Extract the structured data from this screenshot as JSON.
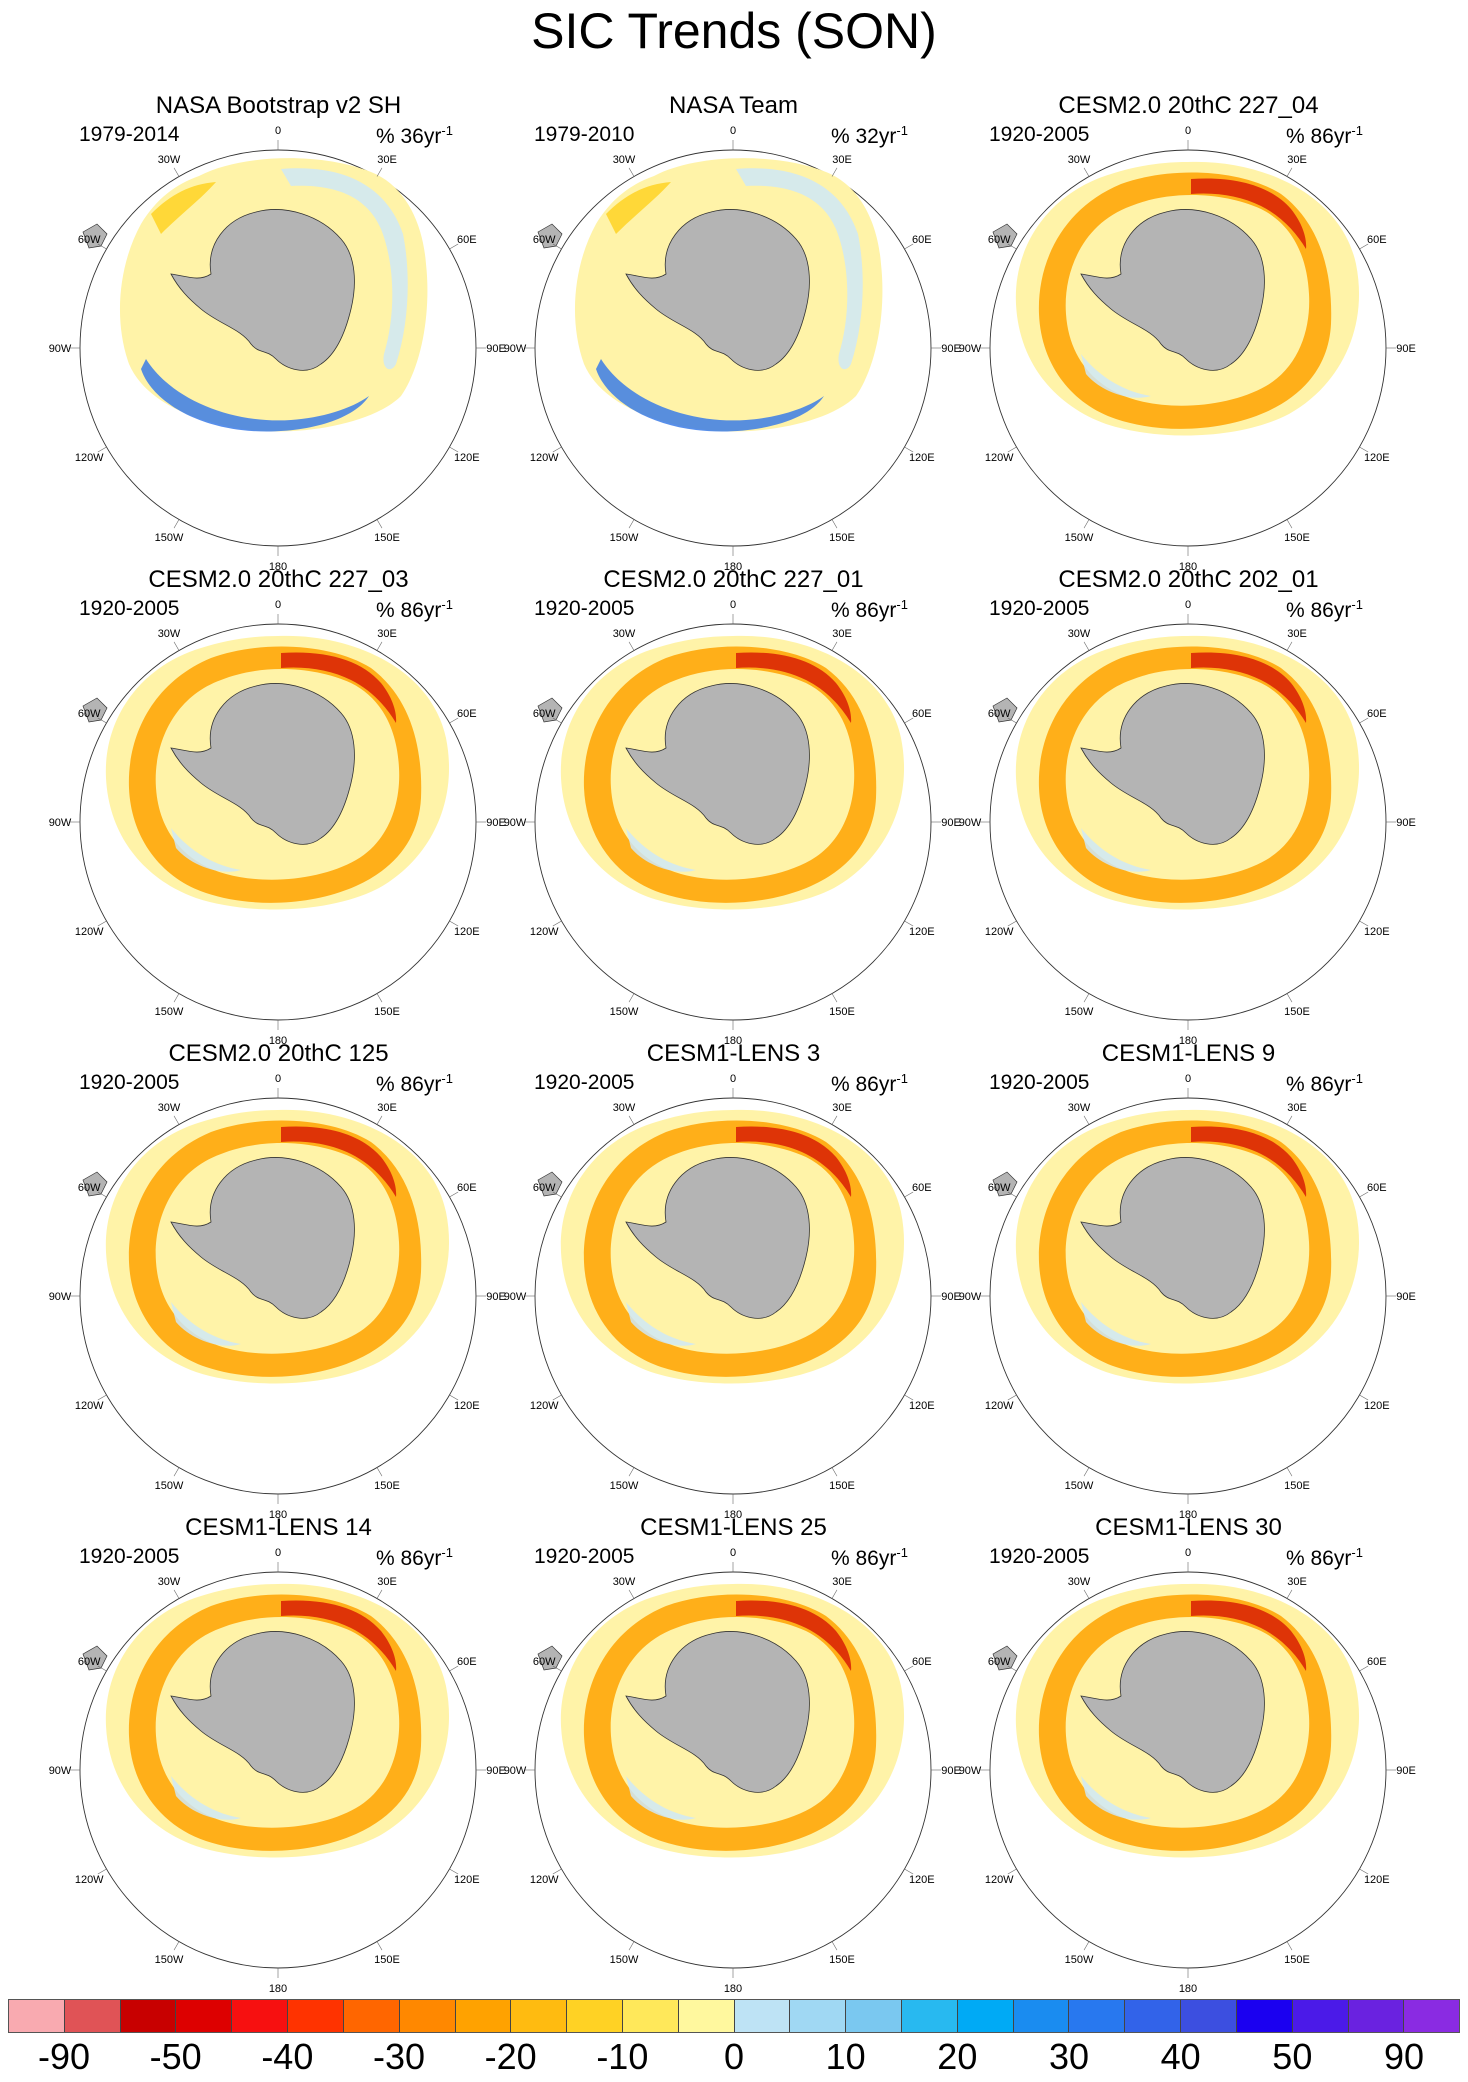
{
  "title": "SIC Trends (SON)",
  "longitude_labels": {
    "lon_0": "0",
    "lon_30e": "30E",
    "lon_60e": "60E",
    "lon_90e": "90E",
    "lon_120e": "120E",
    "lon_150e": "150E",
    "lon_180": "180",
    "lon_150w": "150W",
    "lon_120w": "120W",
    "lon_90w": "90W",
    "lon_60w": "60W",
    "lon_30w": "30W"
  },
  "panels": [
    {
      "title": "NASA Bootstrap v2 SH",
      "period": "1979-2014",
      "units": "% 36yr",
      "units_exp": "-1",
      "style": "obs"
    },
    {
      "title": "NASA Team",
      "period": "1979-2010",
      "units": "% 32yr",
      "units_exp": "-1",
      "style": "obs"
    },
    {
      "title": "CESM2.0 20thC 227_04",
      "period": "1920-2005",
      "units": "% 86yr",
      "units_exp": "-1",
      "style": "model"
    },
    {
      "title": "CESM2.0 20thC 227_03",
      "period": "1920-2005",
      "units": "% 86yr",
      "units_exp": "-1",
      "style": "model"
    },
    {
      "title": "CESM2.0 20thC 227_01",
      "period": "1920-2005",
      "units": "% 86yr",
      "units_exp": "-1",
      "style": "model"
    },
    {
      "title": "CESM2.0 20thC 202_01",
      "period": "1920-2005",
      "units": "% 86yr",
      "units_exp": "-1",
      "style": "model"
    },
    {
      "title": "CESM2.0 20thC 125",
      "period": "1920-2005",
      "units": "% 86yr",
      "units_exp": "-1",
      "style": "model"
    },
    {
      "title": "CESM1-LENS 3",
      "period": "1920-2005",
      "units": "% 86yr",
      "units_exp": "-1",
      "style": "model"
    },
    {
      "title": "CESM1-LENS 9",
      "period": "1920-2005",
      "units": "% 86yr",
      "units_exp": "-1",
      "style": "model"
    },
    {
      "title": "CESM1-LENS 14",
      "period": "1920-2005",
      "units": "% 86yr",
      "units_exp": "-1",
      "style": "model"
    },
    {
      "title": "CESM1-LENS 25",
      "period": "1920-2005",
      "units": "% 86yr",
      "units_exp": "-1",
      "style": "model"
    },
    {
      "title": "CESM1-LENS 30",
      "period": "1920-2005",
      "units": "% 86yr",
      "units_exp": "-1",
      "style": "model"
    }
  ],
  "colorbar": {
    "colors": [
      "#f9aab0",
      "#e05356",
      "#c80000",
      "#dd0000",
      "#f71010",
      "#ff3300",
      "#ff6600",
      "#ff8800",
      "#ffa200",
      "#ffbb10",
      "#ffd224",
      "#ffe85a",
      "#fff89e",
      "#bee3f5",
      "#a0d8f3",
      "#7ac8f0",
      "#28b9f0",
      "#00aaf5",
      "#1a8cf0",
      "#2878ef",
      "#3263e9",
      "#3c4fe0",
      "#1b00f0",
      "#4b1ae8",
      "#6a22e0",
      "#8a2be2"
    ],
    "tick_labels": [
      "-90",
      "-50",
      "-40",
      "-30",
      "-20",
      "-10",
      "0",
      "10",
      "20",
      "30",
      "40",
      "50",
      "90"
    ]
  },
  "colors": {
    "land": "#b4b4b4",
    "coast": "#333333",
    "positive_trend": "#fff3a8",
    "negative_trend": "#cfe8f7",
    "strong_positive": "#ff7a00",
    "max_positive": "#d81e05",
    "strong_negative": "#3b7be6"
  }
}
